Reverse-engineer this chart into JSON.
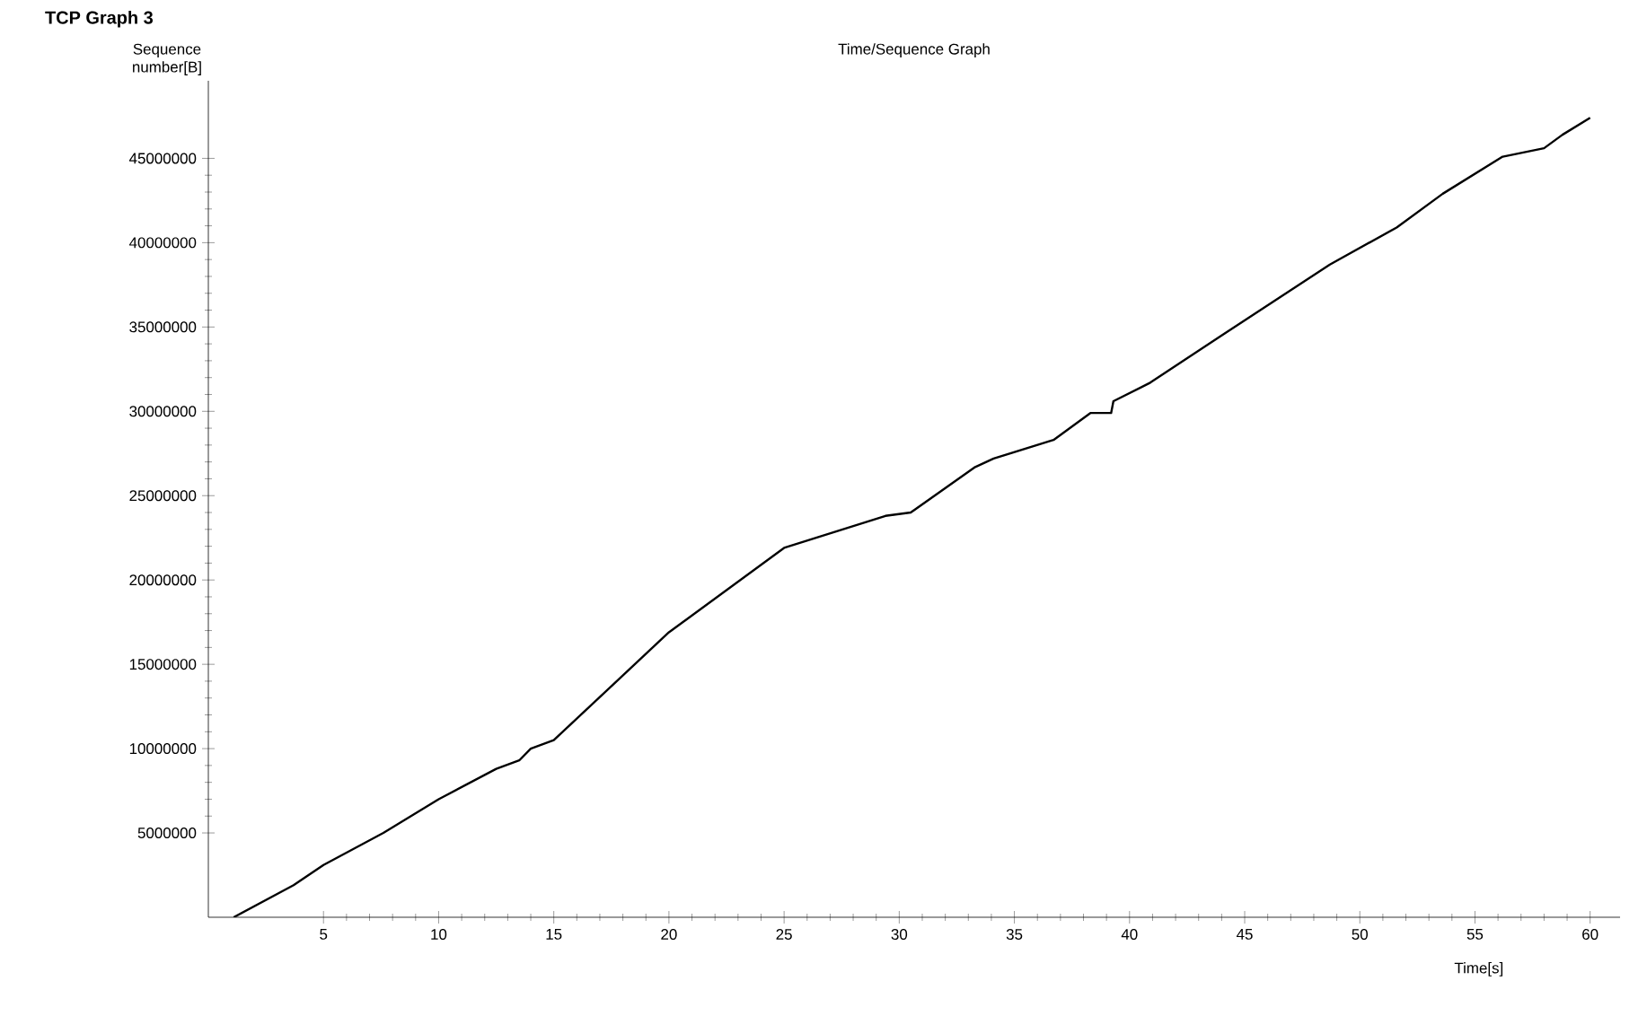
{
  "chart_data": {
    "type": "line",
    "title": "Time/Sequence Graph",
    "xlabel": "Time[s]",
    "ylabel": "Sequence number[B]",
    "annotations": [
      "TCP Graph 3"
    ],
    "x": [
      1.1,
      3.7,
      5,
      7.6,
      10,
      12.5,
      13.5,
      14,
      15,
      20,
      25,
      29.4,
      30.5,
      33.3,
      34.1,
      36.7,
      38.3,
      39.2,
      39.3,
      40.9,
      44,
      48.7,
      51.6,
      53.6,
      56.2,
      58,
      58.8,
      60
    ],
    "values": [
      0,
      1900000,
      3100000,
      5000000,
      7000000,
      8800000,
      9300000,
      10000000,
      10500000,
      16900000,
      21900000,
      23800000,
      24000000,
      26700000,
      27200000,
      28300000,
      29900000,
      29900000,
      30600000,
      31700000,
      34500000,
      38700000,
      40900000,
      42900000,
      45100000,
      45600000,
      46400000,
      47400000
    ],
    "color": "#000000",
    "xlim": [
      0,
      61.3
    ],
    "ylim": [
      0,
      49600000
    ],
    "xticks": [
      5,
      10,
      15,
      20,
      25,
      30,
      35,
      40,
      45,
      50,
      55,
      60
    ],
    "yticks": [
      5000000,
      10000000,
      15000000,
      20000000,
      25000000,
      30000000,
      35000000,
      40000000,
      45000000
    ]
  }
}
